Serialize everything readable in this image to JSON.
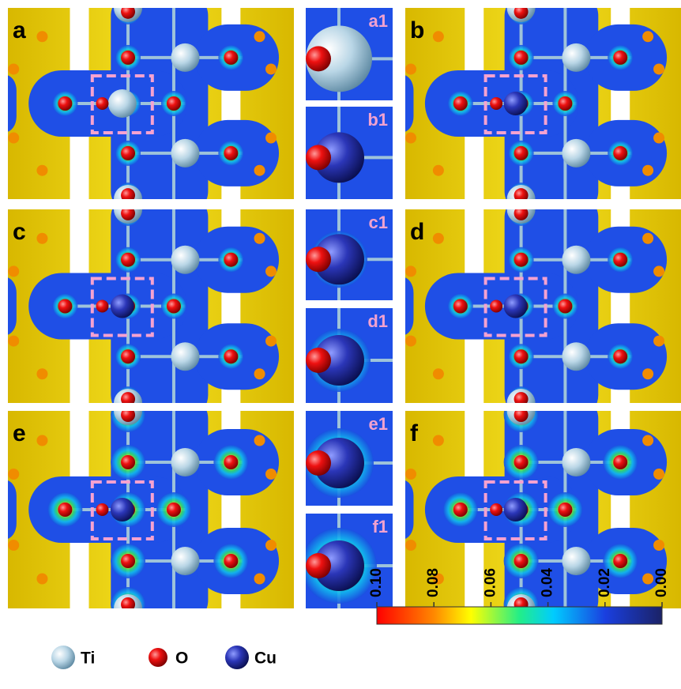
{
  "panels": [
    {
      "label": "a"
    },
    {
      "label": "b"
    },
    {
      "label": "c"
    },
    {
      "label": "d"
    },
    {
      "label": "e"
    },
    {
      "label": "f"
    }
  ],
  "zooms": [
    {
      "label": "a1"
    },
    {
      "label": "b1"
    },
    {
      "label": "c1"
    },
    {
      "label": "d1"
    },
    {
      "label": "e1"
    },
    {
      "label": "f1"
    }
  ],
  "legend": [
    {
      "label": "Ti"
    },
    {
      "label": "O"
    },
    {
      "label": "Cu"
    }
  ],
  "colorbar": {
    "range": [
      0.1,
      0
    ],
    "ticks": [
      {
        "value": 0.1,
        "label": "0.10"
      },
      {
        "value": 0.08,
        "label": "0.08"
      },
      {
        "value": 0.06,
        "label": "0.06"
      },
      {
        "value": 0.04,
        "label": "0.04"
      },
      {
        "value": 0.02,
        "label": "0.02"
      },
      {
        "value": 0,
        "label": "0.00"
      }
    ]
  }
}
